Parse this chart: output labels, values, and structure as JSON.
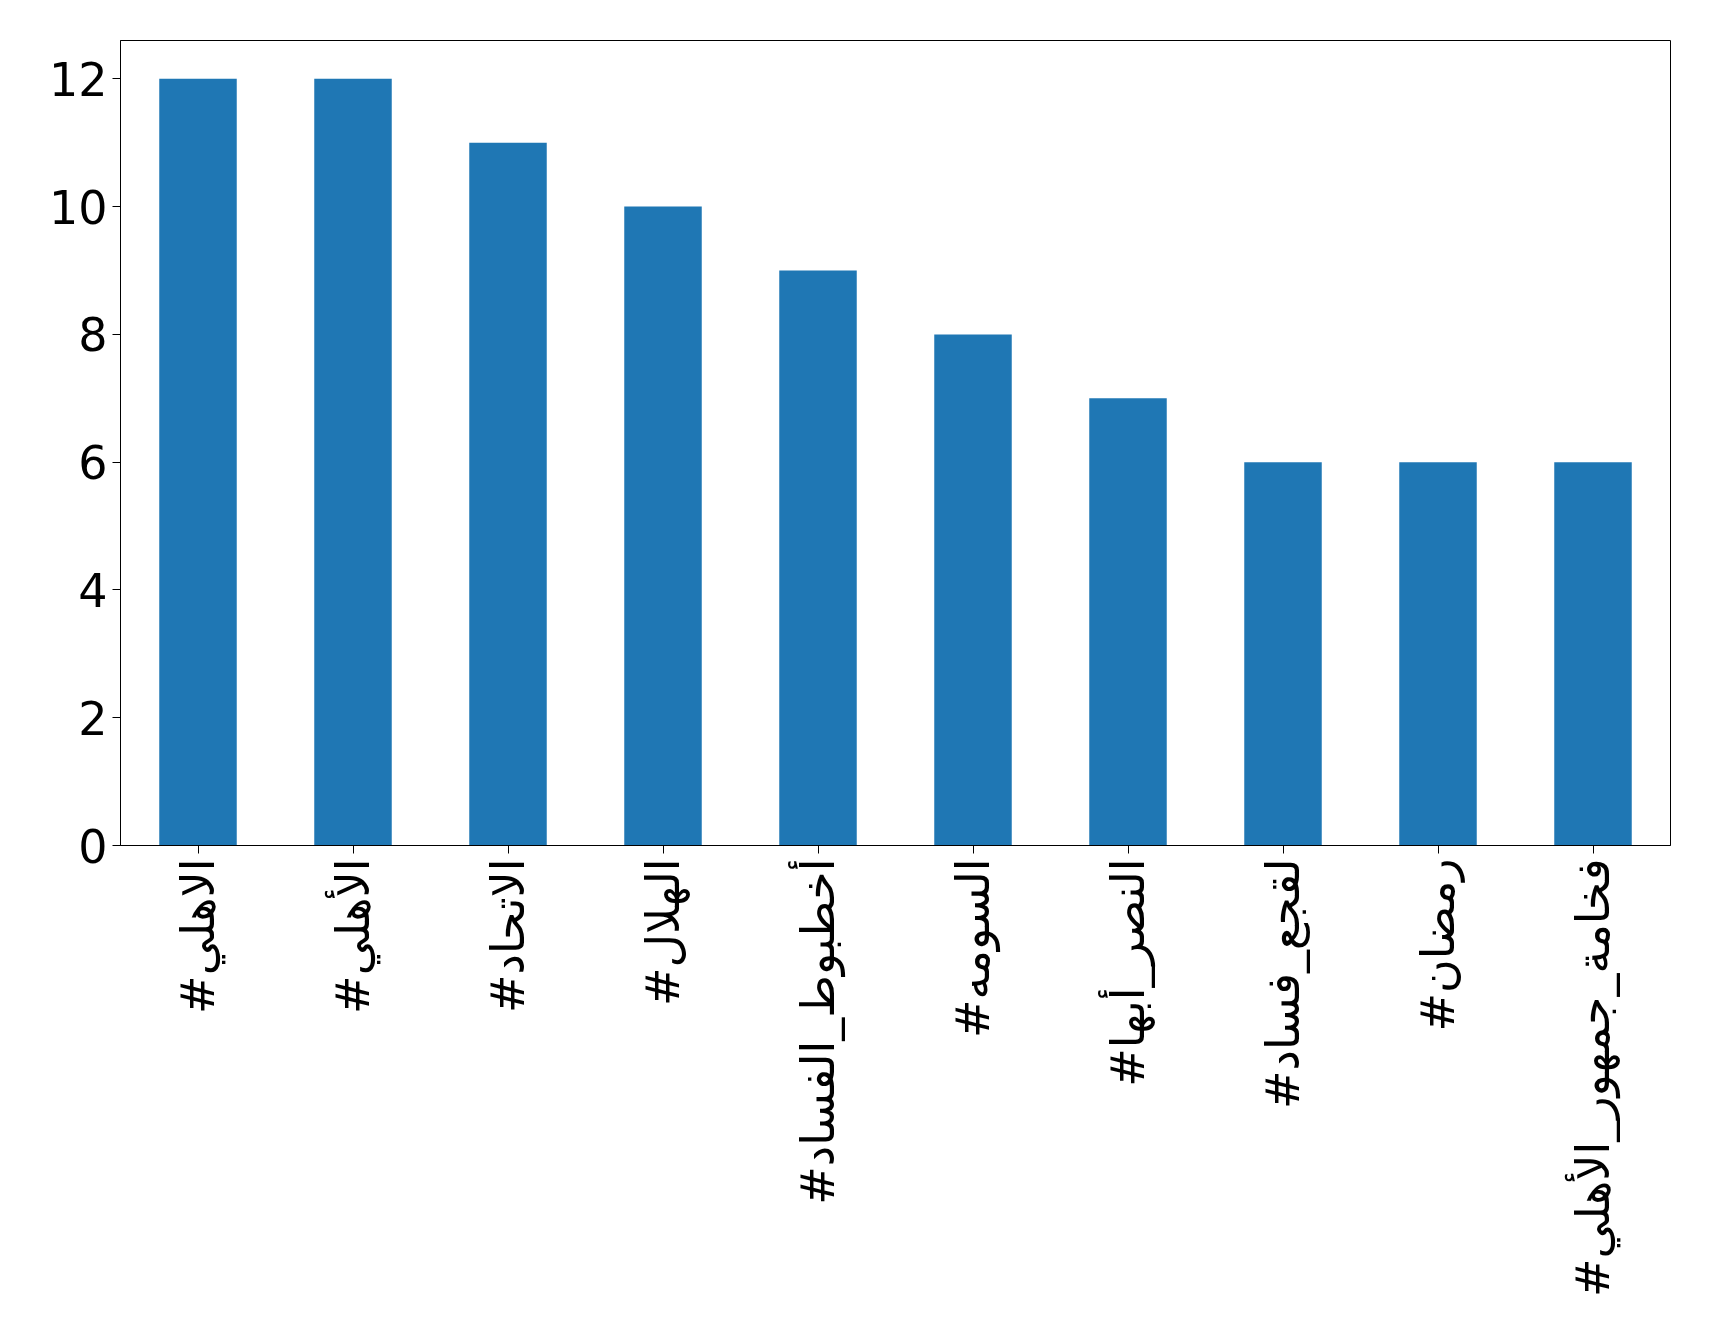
{
  "chart_data": {
    "type": "bar",
    "categories": [
      "#الاهلي",
      "#الأهلي",
      "#الاتحاد",
      "#الهلال",
      "#أخطبوط_الفساد",
      "#السومه",
      "#النصر_أبها",
      "#لقجع_فساد",
      "#رمضان",
      "#فخامة_جمهور_الأهلي"
    ],
    "values": [
      12,
      12,
      11,
      10,
      9,
      8,
      7,
      6,
      6,
      6
    ],
    "color": "#1f77b4",
    "ylim": [
      0,
      12.6
    ],
    "yticks": [
      0,
      2,
      4,
      6,
      8,
      10,
      12
    ],
    "grid": false
  }
}
